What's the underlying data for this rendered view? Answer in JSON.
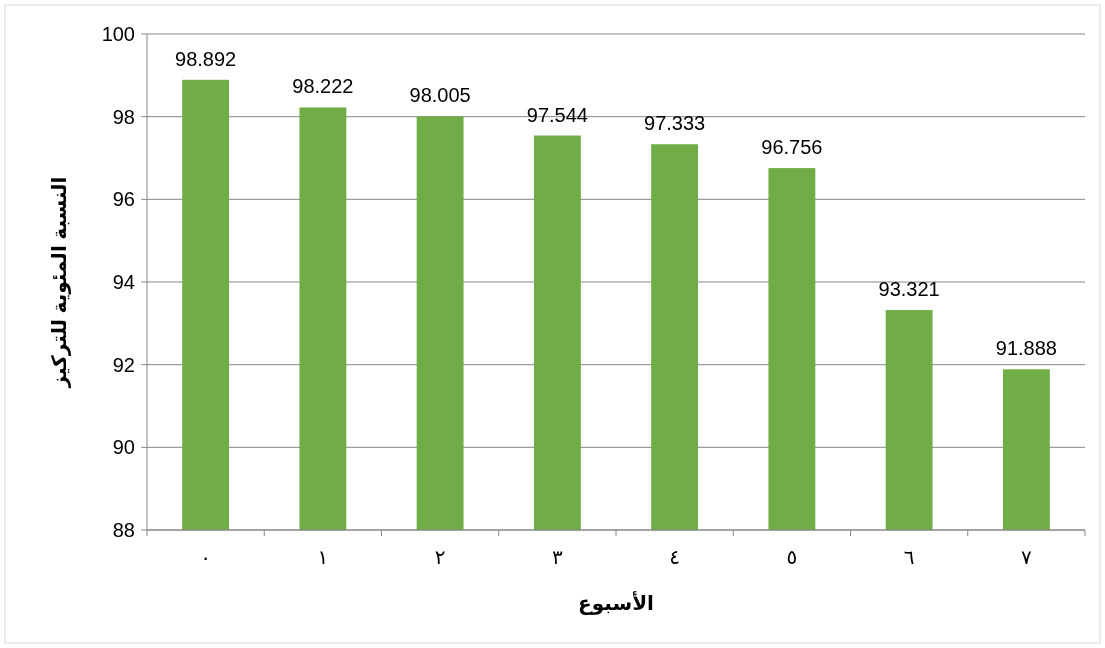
{
  "chart_data": {
    "type": "bar",
    "categories": [
      "٠",
      "١",
      "٢",
      "٣",
      "٤",
      "٥",
      "٦",
      "٧"
    ],
    "values": [
      98.892,
      98.222,
      98.005,
      97.544,
      97.333,
      96.756,
      93.321,
      91.888
    ],
    "color": "#70ad47",
    "xlabel": "الأسبوع",
    "ylabel": "النسبة المئوية للتركيز",
    "ylim": [
      88,
      100
    ],
    "yticks": [
      88,
      90,
      92,
      94,
      96,
      98,
      100
    ],
    "grid": "y",
    "data_labels": true
  }
}
